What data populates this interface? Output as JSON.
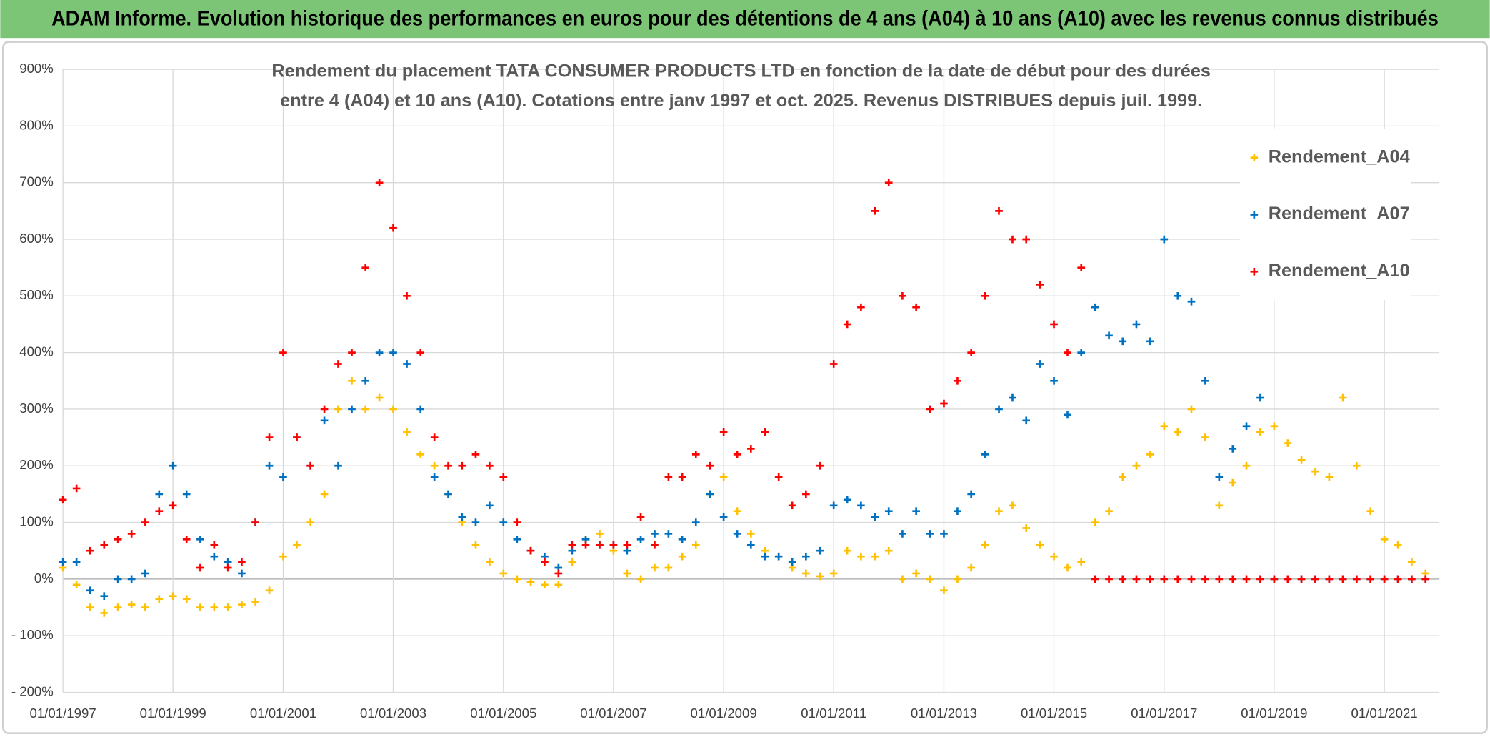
{
  "header": {
    "title": "ADAM Informe. Evolution historique des performances en euros pour des détentions de 4 ans (A04) à 10 ans (A10) avec les revenus connus distribués"
  },
  "chart_data": {
    "type": "scatter",
    "subtitle_lines": [
      "Rendement du placement TATA CONSUMER PRODUCTS LTD en fonction de la date de début pour des durées",
      "entre 4 (A04) et 10 ans (A10). Cotations entre janv 1997 et oct. 2025. Revenus DISTRIBUES depuis juil. 1999."
    ],
    "x": [
      "1997-01-01",
      "1997-04-01",
      "1997-07-01",
      "1997-10-01",
      "1998-01-01",
      "1998-04-01",
      "1998-07-01",
      "1998-10-01",
      "1999-01-01",
      "1999-04-01",
      "1999-07-01",
      "1999-10-01",
      "2000-01-01",
      "2000-04-01",
      "2000-07-01",
      "2000-10-01",
      "2001-01-01",
      "2001-04-01",
      "2001-07-01",
      "2001-10-01",
      "2002-01-01",
      "2002-04-01",
      "2002-07-01",
      "2002-10-01",
      "2003-01-01",
      "2003-04-01",
      "2003-07-01",
      "2003-10-01",
      "2004-01-01",
      "2004-04-01",
      "2004-07-01",
      "2004-10-01",
      "2005-01-01",
      "2005-04-01",
      "2005-07-01",
      "2005-10-01",
      "2006-01-01",
      "2006-04-01",
      "2006-07-01",
      "2006-10-01",
      "2007-01-01",
      "2007-04-01",
      "2007-07-01",
      "2007-10-01",
      "2008-01-01",
      "2008-04-01",
      "2008-07-01",
      "2008-10-01",
      "2009-01-01",
      "2009-04-01",
      "2009-07-01",
      "2009-10-01",
      "2010-01-01",
      "2010-04-01",
      "2010-07-01",
      "2010-10-01",
      "2011-01-01",
      "2011-04-01",
      "2011-07-01",
      "2011-10-01",
      "2012-01-01",
      "2012-04-01",
      "2012-07-01",
      "2012-10-01",
      "2013-01-01",
      "2013-04-01",
      "2013-07-01",
      "2013-10-01",
      "2014-01-01",
      "2014-04-01",
      "2014-07-01",
      "2014-10-01",
      "2015-01-01",
      "2015-04-01",
      "2015-07-01",
      "2015-10-01",
      "2016-01-01",
      "2016-04-01",
      "2016-07-01",
      "2016-10-01",
      "2017-01-01",
      "2017-04-01",
      "2017-07-01",
      "2017-10-01",
      "2018-01-01",
      "2018-04-01",
      "2018-07-01",
      "2018-10-01",
      "2019-01-01",
      "2019-04-01",
      "2019-07-01",
      "2019-10-01",
      "2020-01-01",
      "2020-04-01",
      "2020-07-01",
      "2020-10-01",
      "2021-01-01",
      "2021-04-01",
      "2021-07-01",
      "2021-10-01"
    ],
    "series": [
      {
        "name": "Rendement_A04",
        "color": "#ffc000",
        "values": [
          20,
          -10,
          -50,
          -60,
          -50,
          -45,
          -50,
          -35,
          -30,
          -35,
          -50,
          -50,
          -50,
          -45,
          -40,
          -20,
          40,
          60,
          100,
          150,
          300,
          350,
          300,
          320,
          300,
          260,
          220,
          200,
          150,
          100,
          60,
          30,
          10,
          0,
          -5,
          -10,
          -10,
          30,
          70,
          80,
          50,
          10,
          0,
          20,
          20,
          40,
          60,
          150,
          180,
          120,
          80,
          50,
          40,
          20,
          10,
          5,
          10,
          50,
          40,
          40,
          50,
          0,
          10,
          0,
          -20,
          0,
          20,
          60,
          120,
          130,
          90,
          60,
          40,
          20,
          30,
          100,
          120,
          180,
          200,
          220,
          270,
          260,
          300,
          250,
          130,
          170,
          200,
          260,
          270,
          240,
          210,
          190,
          180,
          320,
          200,
          120,
          70,
          60,
          30,
          10
        ]
      },
      {
        "name": "Rendement_A07",
        "color": "#0070c0",
        "values": [
          30,
          30,
          -20,
          -30,
          0,
          0,
          10,
          150,
          200,
          150,
          70,
          40,
          30,
          10,
          100,
          200,
          180,
          250,
          200,
          280,
          200,
          300,
          350,
          400,
          400,
          380,
          300,
          180,
          150,
          110,
          100,
          130,
          100,
          70,
          50,
          40,
          20,
          50,
          70,
          60,
          60,
          50,
          70,
          80,
          80,
          70,
          100,
          150,
          110,
          80,
          60,
          40,
          40,
          30,
          40,
          50,
          130,
          140,
          130,
          110,
          120,
          80,
          120,
          80,
          80,
          120,
          150,
          220,
          300,
          320,
          280,
          380,
          350,
          290,
          400,
          480,
          430,
          420,
          450,
          420,
          600,
          500,
          490,
          350,
          180,
          230,
          270,
          320,
          0,
          0,
          0,
          0,
          0,
          0,
          0,
          0,
          0,
          0,
          0,
          0
        ]
      },
      {
        "name": "Rendement_A10",
        "color": "#ff0000",
        "values": [
          140,
          160,
          50,
          60,
          70,
          80,
          100,
          120,
          130,
          70,
          20,
          60,
          20,
          30,
          100,
          250,
          400,
          250,
          200,
          300,
          380,
          400,
          550,
          700,
          620,
          500,
          400,
          250,
          200,
          200,
          220,
          200,
          180,
          100,
          50,
          30,
          10,
          60,
          60,
          60,
          60,
          60,
          110,
          60,
          180,
          180,
          220,
          200,
          260,
          220,
          230,
          260,
          180,
          130,
          150,
          200,
          380,
          450,
          480,
          650,
          700,
          500,
          480,
          300,
          310,
          350,
          400,
          500,
          650,
          600,
          600,
          520,
          450,
          400,
          550,
          0,
          0,
          0,
          0,
          0,
          0,
          0,
          0,
          0,
          0,
          0,
          0,
          0,
          0,
          0,
          0,
          0,
          0,
          0,
          0,
          0,
          0,
          0,
          0,
          0
        ]
      }
    ],
    "xlim": [
      "1997-01-01",
      "2022-01-01"
    ],
    "ylim": [
      -200,
      900
    ],
    "xticks": [
      {
        "value": "1997-01-01",
        "label": "01/01/1997"
      },
      {
        "value": "1999-01-01",
        "label": "01/01/1999"
      },
      {
        "value": "2001-01-01",
        "label": "01/01/2001"
      },
      {
        "value": "2003-01-01",
        "label": "01/01/2003"
      },
      {
        "value": "2005-01-01",
        "label": "01/01/2005"
      },
      {
        "value": "2007-01-01",
        "label": "01/01/2007"
      },
      {
        "value": "2009-01-01",
        "label": "01/01/2009"
      },
      {
        "value": "2011-01-01",
        "label": "01/01/2011"
      },
      {
        "value": "2013-01-01",
        "label": "01/01/2013"
      },
      {
        "value": "2015-01-01",
        "label": "01/01/2015"
      },
      {
        "value": "2017-01-01",
        "label": "01/01/2017"
      },
      {
        "value": "2019-01-01",
        "label": "01/01/2019"
      },
      {
        "value": "2021-01-01",
        "label": "01/01/2021"
      }
    ],
    "yticks": [
      {
        "value": -200,
        "label": "- 200%"
      },
      {
        "value": -100,
        "label": "- 100%"
      },
      {
        "value": 0,
        "label": "0%"
      },
      {
        "value": 100,
        "label": "100%"
      },
      {
        "value": 200,
        "label": "200%"
      },
      {
        "value": 300,
        "label": "300%"
      },
      {
        "value": 400,
        "label": "400%"
      },
      {
        "value": 500,
        "label": "500%"
      },
      {
        "value": 600,
        "label": "600%"
      },
      {
        "value": 700,
        "label": "700%"
      },
      {
        "value": 800,
        "label": "800%"
      },
      {
        "value": 900,
        "label": "900%"
      }
    ],
    "grid": true,
    "legend": "upper right"
  }
}
